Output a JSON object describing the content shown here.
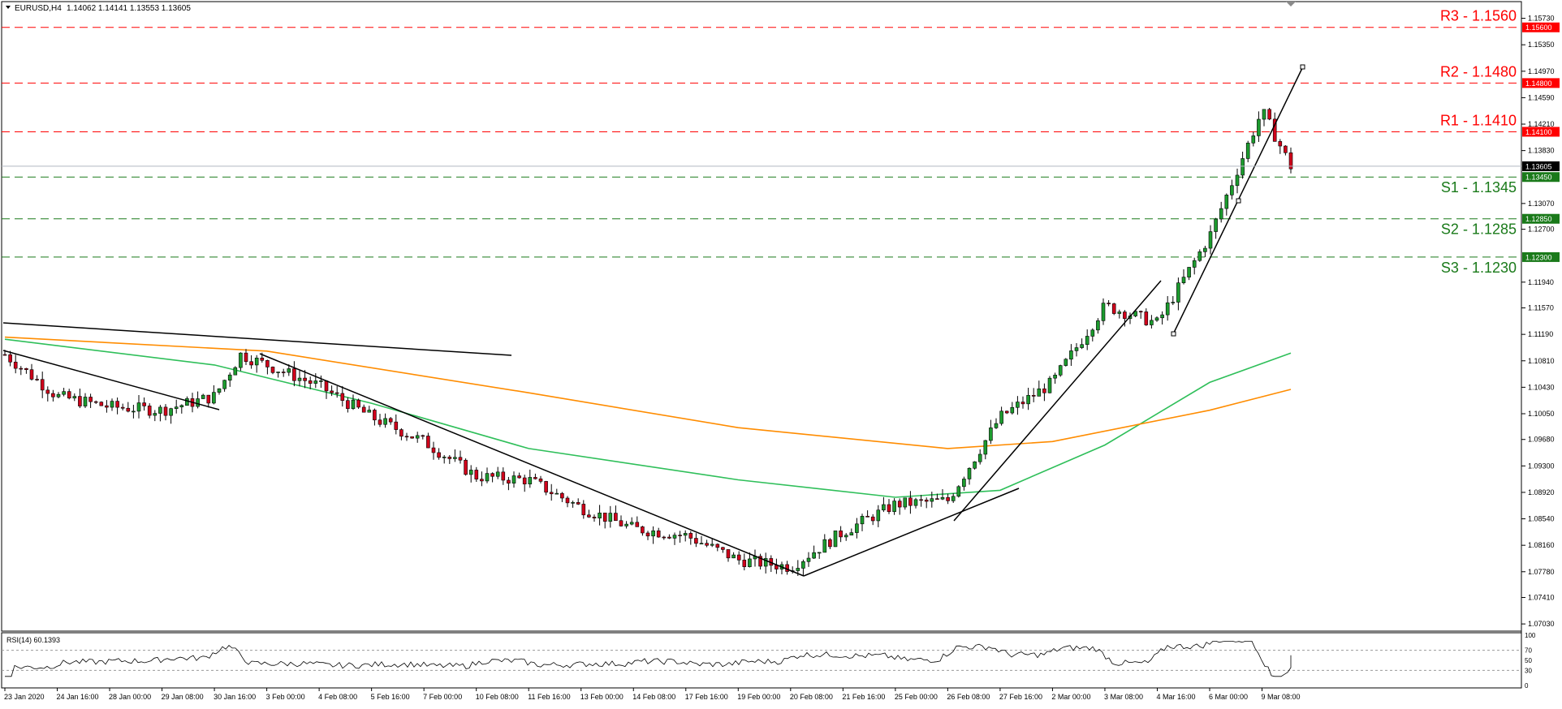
{
  "header": {
    "symbol": "EURUSD,H4",
    "ohlc": "1.14062 1.14141 1.13553 1.13605"
  },
  "rsi_panel": {
    "label": "RSI(14) 60.1393",
    "ticks": [
      "100",
      "70",
      "50",
      "30",
      "0"
    ]
  },
  "price_axis": {
    "ticks": [
      "1.15730",
      "1.15350",
      "1.14970",
      "1.14590",
      "1.14210",
      "1.13830",
      "1.13070",
      "1.12700",
      "1.11940",
      "1.11570",
      "1.11190",
      "1.10810",
      "1.10430",
      "1.10050",
      "1.09680",
      "1.09300",
      "1.08920",
      "1.08540",
      "1.08160",
      "1.07780",
      "1.07410",
      "1.07030"
    ],
    "current_price": "1.13605"
  },
  "time_axis": {
    "labels": [
      "23 Jan 2020",
      "24 Jan 16:00",
      "28 Jan 00:00",
      "29 Jan 08:00",
      "30 Jan 16:00",
      "3 Feb 00:00",
      "4 Feb 08:00",
      "5 Feb 16:00",
      "7 Feb 00:00",
      "10 Feb 08:00",
      "11 Feb 16:00",
      "13 Feb 00:00",
      "14 Feb 08:00",
      "17 Feb 16:00",
      "19 Feb 00:00",
      "20 Feb 08:00",
      "21 Feb 16:00",
      "25 Feb 00:00",
      "26 Feb 08:00",
      "27 Feb 16:00",
      "2 Mar 00:00",
      "3 Mar 08:00",
      "4 Mar 16:00",
      "6 Mar 00:00",
      "9 Mar 08:00"
    ]
  },
  "levels": [
    {
      "name": "R3",
      "label": "R3 - 1.1560",
      "value": 1.156,
      "tag": "1.15600",
      "color": "#ff0000"
    },
    {
      "name": "R2",
      "label": "R2 - 1.1480",
      "value": 1.148,
      "tag": "1.14800",
      "color": "#ff0000"
    },
    {
      "name": "R1",
      "label": "R1 - 1.1410",
      "value": 1.141,
      "tag": "1.14100",
      "color": "#ff0000"
    },
    {
      "name": "S1",
      "label": "S1 - 1.1345",
      "value": 1.1345,
      "tag": "1.13450",
      "color": "#1a7a1a"
    },
    {
      "name": "S2",
      "label": "S2 - 1.1285",
      "value": 1.1285,
      "tag": "1.12850",
      "color": "#1a7a1a"
    },
    {
      "name": "S3",
      "label": "S3 - 1.1230",
      "value": 1.123,
      "tag": "1.12300",
      "color": "#1a7a1a"
    }
  ],
  "colors": {
    "bull": "#1c9b2e",
    "bear": "#d0021b",
    "ma_fast": "#2fbf5a",
    "ma_slow": "#ff8c00",
    "trendline": "#000000",
    "rsi": "#000000",
    "current_price_tag": "#000000"
  },
  "chart_data": {
    "type": "candlestick",
    "symbol": "EURUSD",
    "timeframe": "H4",
    "ylim": [
      1.0695,
      1.159
    ],
    "close_path": [
      {
        "date": "23 Jan 2020",
        "close": 1.109
      },
      {
        "date": "24 Jan 16:00",
        "close": 1.103
      },
      {
        "date": "28 Jan 00:00",
        "close": 1.1015
      },
      {
        "date": "29 Jan 08:00",
        "close": 1.101
      },
      {
        "date": "30 Jan 16:00",
        "close": 1.103
      },
      {
        "date": "31 Jan",
        "close": 1.109
      },
      {
        "date": "3 Feb 00:00",
        "close": 1.1075
      },
      {
        "date": "4 Feb 08:00",
        "close": 1.1045
      },
      {
        "date": "5 Feb 16:00",
        "close": 1.1
      },
      {
        "date": "7 Feb 00:00",
        "close": 1.0965
      },
      {
        "date": "10 Feb 08:00",
        "close": 1.0915
      },
      {
        "date": "11 Feb 16:00",
        "close": 1.091
      },
      {
        "date": "13 Feb 00:00",
        "close": 1.087
      },
      {
        "date": "14 Feb 08:00",
        "close": 1.084
      },
      {
        "date": "17 Feb 16:00",
        "close": 1.083
      },
      {
        "date": "19 Feb 00:00",
        "close": 1.0795
      },
      {
        "date": "20 Feb 08:00",
        "close": 1.0785
      },
      {
        "date": "21 Feb 16:00",
        "close": 1.0835
      },
      {
        "date": "25 Feb 00:00",
        "close": 1.0875
      },
      {
        "date": "26 Feb 08:00",
        "close": 1.088
      },
      {
        "date": "27 Feb 16:00",
        "close": 1.1
      },
      {
        "date": "2 Mar 00:00",
        "close": 1.105
      },
      {
        "date": "3 Mar 08:00",
        "close": 1.116
      },
      {
        "date": "4 Mar 16:00",
        "close": 1.1135
      },
      {
        "date": "6 Mar 00:00",
        "close": 1.126
      },
      {
        "date": "9 Mar 08:00",
        "close": 1.144
      },
      {
        "date": "last",
        "close": 1.13605
      }
    ],
    "ma_green": [
      {
        "date": "23 Jan 2020",
        "value": 1.1112
      },
      {
        "date": "30 Jan 16:00",
        "value": 1.1075
      },
      {
        "date": "5 Feb 16:00",
        "value": 1.102
      },
      {
        "date": "11 Feb 16:00",
        "value": 1.0955
      },
      {
        "date": "19 Feb 00:00",
        "value": 1.091
      },
      {
        "date": "25 Feb 00:00",
        "value": 1.0885
      },
      {
        "date": "27 Feb 16:00",
        "value": 1.0895
      },
      {
        "date": "3 Mar 08:00",
        "value": 1.096
      },
      {
        "date": "6 Mar 00:00",
        "value": 1.105
      },
      {
        "date": "last",
        "value": 1.1092
      }
    ],
    "ma_orange": [
      {
        "date": "23 Jan 2020",
        "value": 1.1115
      },
      {
        "date": "3 Feb 00:00",
        "value": 1.1095
      },
      {
        "date": "11 Feb 16:00",
        "value": 1.1035
      },
      {
        "date": "19 Feb 00:00",
        "value": 1.0985
      },
      {
        "date": "26 Feb 08:00",
        "value": 1.0955
      },
      {
        "date": "2 Mar 00:00",
        "value": 1.0965
      },
      {
        "date": "6 Mar 00:00",
        "value": 1.101
      },
      {
        "date": "last",
        "value": 1.104
      }
    ],
    "rsi": {
      "period": 14,
      "last": 60.1393,
      "levels": [
        70,
        30
      ]
    }
  }
}
